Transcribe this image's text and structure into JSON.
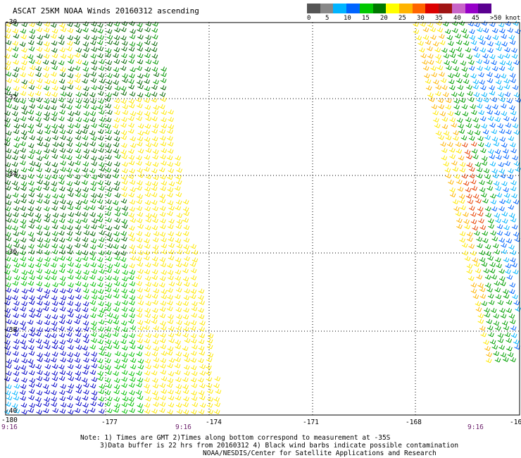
{
  "title": "ASCAT 25KM NOAA Winds 20160312 ascending",
  "color_scale": {
    "colors": [
      "#555555",
      "#888888",
      "#00b4ff",
      "#0064ff",
      "#00c800",
      "#007800",
      "#ffff00",
      "#ffb400",
      "#ff6400",
      "#dc0000",
      "#a01414",
      "#c864c8",
      "#9600c8",
      "#5a0090"
    ],
    "labels": [
      "0",
      "5",
      "10",
      "15",
      "20",
      "25",
      "30",
      "35",
      "40",
      "45",
      ">50 knots"
    ]
  },
  "axes": {
    "lat_labels": [
      "-30",
      "-32",
      "-34",
      "-36",
      "-38",
      "-40"
    ],
    "lon_labels": [
      "-180",
      "-177",
      "-174",
      "-171",
      "-168",
      "-16"
    ]
  },
  "pass_times": [
    "9:16",
    "9:16",
    "9:16"
  ],
  "notes": [
    "Note: 1) Times are GMT 2)Times along bottom correspond to measurement at -35S",
    "3)Data buffer is 22 hrs from 20160312 4) Black wind barbs indicate possible contamination",
    "NOAA/NESDIS/Center for Satellite Applications and Research"
  ]
}
